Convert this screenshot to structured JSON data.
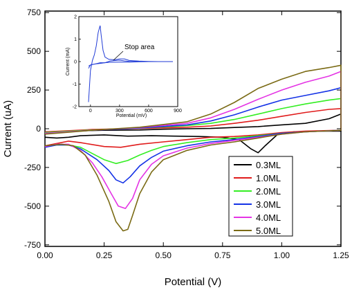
{
  "chart_data": [
    {
      "type": "line",
      "title": "",
      "xlabel": "Potential (V)",
      "ylabel": "Current (uA)",
      "xlim": [
        0.0,
        1.25
      ],
      "ylim": [
        -760,
        760
      ],
      "x_ticks": [
        "0.00",
        "0.25",
        "0.50",
        "0.75",
        "1.00",
        "1.25"
      ],
      "y_ticks": [
        "750",
        "500",
        "250",
        "0",
        "-250",
        "-500",
        "-750"
      ],
      "x_tick_values": [
        0.0,
        0.25,
        0.5,
        0.75,
        1.0,
        1.25
      ],
      "y_tick_values": [
        750,
        500,
        250,
        0,
        -250,
        -500,
        -750
      ],
      "legend_position": "bottom-right",
      "grid": false,
      "series": [
        {
          "name": "0.3ML",
          "color": "#000000",
          "upper": [
            [
              0.0,
              -20
            ],
            [
              0.1,
              -15
            ],
            [
              0.25,
              -10
            ],
            [
              0.4,
              -8
            ],
            [
              0.5,
              -3
            ],
            [
              0.6,
              0
            ],
            [
              0.7,
              2
            ],
            [
              0.8,
              8
            ],
            [
              0.9,
              14
            ],
            [
              1.0,
              25
            ],
            [
              1.1,
              35
            ],
            [
              1.2,
              65
            ],
            [
              1.25,
              95
            ]
          ],
          "lower": [
            [
              1.25,
              -15
            ],
            [
              1.15,
              -15
            ],
            [
              1.05,
              -20
            ],
            [
              0.98,
              -40
            ],
            [
              0.93,
              -110
            ],
            [
              0.9,
              -155
            ],
            [
              0.87,
              -130
            ],
            [
              0.82,
              -70
            ],
            [
              0.75,
              -55
            ],
            [
              0.65,
              -50
            ],
            [
              0.55,
              -48
            ],
            [
              0.45,
              -45
            ],
            [
              0.35,
              -48
            ],
            [
              0.25,
              -40
            ],
            [
              0.15,
              -45
            ],
            [
              0.1,
              -55
            ],
            [
              0.05,
              -60
            ],
            [
              0.0,
              -55
            ]
          ]
        },
        {
          "name": "1.0ML",
          "color": "#e01b1b",
          "upper": [
            [
              0.0,
              -20
            ],
            [
              0.2,
              -5
            ],
            [
              0.4,
              2
            ],
            [
              0.6,
              10
            ],
            [
              0.7,
              18
            ],
            [
              0.8,
              35
            ],
            [
              0.9,
              55
            ],
            [
              1.0,
              80
            ],
            [
              1.1,
              105
            ],
            [
              1.2,
              125
            ],
            [
              1.25,
              130
            ]
          ],
          "lower": [
            [
              1.25,
              -10
            ],
            [
              1.1,
              -15
            ],
            [
              1.0,
              -25
            ],
            [
              0.9,
              -40
            ],
            [
              0.8,
              -50
            ],
            [
              0.7,
              -55
            ],
            [
              0.6,
              -70
            ],
            [
              0.5,
              -85
            ],
            [
              0.4,
              -100
            ],
            [
              0.32,
              -120
            ],
            [
              0.25,
              -115
            ],
            [
              0.15,
              -90
            ],
            [
              0.1,
              -80
            ],
            [
              0.05,
              -95
            ],
            [
              0.0,
              -110
            ]
          ]
        },
        {
          "name": "2.0ML",
          "color": "#33ee22",
          "upper": [
            [
              0.0,
              -25
            ],
            [
              0.2,
              -8
            ],
            [
              0.4,
              5
            ],
            [
              0.6,
              20
            ],
            [
              0.7,
              35
            ],
            [
              0.8,
              60
            ],
            [
              0.9,
              95
            ],
            [
              1.0,
              130
            ],
            [
              1.1,
              160
            ],
            [
              1.2,
              185
            ],
            [
              1.25,
              195
            ]
          ],
          "lower": [
            [
              1.25,
              -10
            ],
            [
              1.1,
              -20
            ],
            [
              1.0,
              -30
            ],
            [
              0.9,
              -45
            ],
            [
              0.8,
              -60
            ],
            [
              0.7,
              -70
            ],
            [
              0.6,
              -90
            ],
            [
              0.5,
              -115
            ],
            [
              0.45,
              -140
            ],
            [
              0.4,
              -170
            ],
            [
              0.35,
              -205
            ],
            [
              0.3,
              -225
            ],
            [
              0.25,
              -200
            ],
            [
              0.2,
              -160
            ],
            [
              0.15,
              -120
            ],
            [
              0.1,
              -105
            ],
            [
              0.05,
              -105
            ],
            [
              0.0,
              -115
            ]
          ]
        },
        {
          "name": "3.0ML",
          "color": "#1432e6",
          "upper": [
            [
              0.0,
              -30
            ],
            [
              0.2,
              -10
            ],
            [
              0.4,
              5
            ],
            [
              0.6,
              25
            ],
            [
              0.7,
              50
            ],
            [
              0.8,
              90
            ],
            [
              0.9,
              140
            ],
            [
              1.0,
              185
            ],
            [
              1.1,
              215
            ],
            [
              1.2,
              245
            ],
            [
              1.25,
              265
            ]
          ],
          "lower": [
            [
              1.25,
              -10
            ],
            [
              1.1,
              -20
            ],
            [
              1.0,
              -30
            ],
            [
              0.9,
              -50
            ],
            [
              0.8,
              -70
            ],
            [
              0.7,
              -85
            ],
            [
              0.6,
              -110
            ],
            [
              0.5,
              -145
            ],
            [
              0.45,
              -185
            ],
            [
              0.4,
              -240
            ],
            [
              0.36,
              -310
            ],
            [
              0.33,
              -350
            ],
            [
              0.3,
              -330
            ],
            [
              0.27,
              -270
            ],
            [
              0.22,
              -200
            ],
            [
              0.15,
              -130
            ],
            [
              0.1,
              -105
            ],
            [
              0.05,
              -105
            ],
            [
              0.0,
              -120
            ]
          ]
        },
        {
          "name": "4.0ML",
          "color": "#e433e4",
          "upper": [
            [
              0.0,
              -30
            ],
            [
              0.2,
              -10
            ],
            [
              0.4,
              8
            ],
            [
              0.6,
              35
            ],
            [
              0.7,
              70
            ],
            [
              0.8,
              125
            ],
            [
              0.9,
              190
            ],
            [
              1.0,
              250
            ],
            [
              1.1,
              300
            ],
            [
              1.2,
              340
            ],
            [
              1.25,
              370
            ]
          ],
          "lower": [
            [
              1.25,
              -10
            ],
            [
              1.1,
              -20
            ],
            [
              1.0,
              -35
            ],
            [
              0.9,
              -55
            ],
            [
              0.8,
              -75
            ],
            [
              0.7,
              -95
            ],
            [
              0.6,
              -125
            ],
            [
              0.5,
              -175
            ],
            [
              0.45,
              -230
            ],
            [
              0.4,
              -330
            ],
            [
              0.37,
              -450
            ],
            [
              0.34,
              -515
            ],
            [
              0.31,
              -500
            ],
            [
              0.28,
              -420
            ],
            [
              0.24,
              -310
            ],
            [
              0.2,
              -220
            ],
            [
              0.15,
              -140
            ],
            [
              0.1,
              -100
            ],
            [
              0.05,
              -100
            ],
            [
              0.0,
              -115
            ]
          ]
        },
        {
          "name": "5.0ML",
          "color": "#7a6a14",
          "upper": [
            [
              0.0,
              -35
            ],
            [
              0.2,
              -10
            ],
            [
              0.4,
              10
            ],
            [
              0.6,
              45
            ],
            [
              0.7,
              95
            ],
            [
              0.8,
              170
            ],
            [
              0.9,
              260
            ],
            [
              1.0,
              320
            ],
            [
              1.1,
              370
            ],
            [
              1.2,
              395
            ],
            [
              1.25,
              410
            ]
          ],
          "lower": [
            [
              1.25,
              -10
            ],
            [
              1.1,
              -20
            ],
            [
              1.0,
              -35
            ],
            [
              0.9,
              -60
            ],
            [
              0.8,
              -85
            ],
            [
              0.7,
              -105
            ],
            [
              0.6,
              -140
            ],
            [
              0.5,
              -200
            ],
            [
              0.45,
              -280
            ],
            [
              0.4,
              -420
            ],
            [
              0.37,
              -560
            ],
            [
              0.35,
              -650
            ],
            [
              0.33,
              -660
            ],
            [
              0.3,
              -600
            ],
            [
              0.27,
              -470
            ],
            [
              0.22,
              -300
            ],
            [
              0.17,
              -170
            ],
            [
              0.12,
              -110
            ],
            [
              0.07,
              -100
            ],
            [
              0.0,
              -110
            ]
          ]
        }
      ]
    },
    {
      "type": "line",
      "title": "",
      "xlabel": "Potential (mV)",
      "ylabel": "Current (mA)",
      "xlim": [
        -120,
        900
      ],
      "ylim": [
        -2.0,
        2.0
      ],
      "x_ticks": [
        "0",
        "300",
        "600",
        "900"
      ],
      "y_ticks": [
        "2",
        "1",
        "0",
        "-1",
        "-2"
      ],
      "x_tick_values": [
        0,
        300,
        600,
        900
      ],
      "y_tick_values": [
        2,
        1,
        0,
        -1,
        -2
      ],
      "annotation": "Stop area",
      "series": [
        {
          "color": "#1f3ad6",
          "points": [
            [
              -20,
              -1.8
            ],
            [
              0,
              -0.4
            ],
            [
              20,
              0.05
            ],
            [
              40,
              0.3
            ],
            [
              60,
              0.7
            ],
            [
              80,
              1.3
            ],
            [
              100,
              1.6
            ],
            [
              110,
              1.2
            ],
            [
              130,
              0.5
            ],
            [
              150,
              0.2
            ],
            [
              190,
              0.1
            ],
            [
              250,
              0.08
            ],
            [
              300,
              0.12
            ],
            [
              350,
              0.12
            ],
            [
              400,
              0.05
            ],
            [
              500,
              0.02
            ],
            [
              600,
              0.01
            ],
            [
              700,
              0.0
            ],
            [
              800,
              0.0
            ],
            [
              850,
              0.0
            ]
          ]
        },
        {
          "color": "#1f3ad6",
          "points": [
            [
              -20,
              -0.3
            ],
            [
              0,
              -0.15
            ],
            [
              50,
              -0.1
            ],
            [
              100,
              -0.05
            ],
            [
              150,
              -0.05
            ],
            [
              200,
              0.02
            ],
            [
              260,
              0.05
            ],
            [
              300,
              0.06
            ],
            [
              350,
              0.03
            ],
            [
              400,
              0.01
            ],
            [
              500,
              0.0
            ],
            [
              650,
              0.0
            ],
            [
              850,
              0.0
            ]
          ]
        },
        {
          "color": "#1f3ad6",
          "points": [
            [
              850,
              0.0
            ],
            [
              700,
              0.0
            ],
            [
              600,
              0.0
            ],
            [
              500,
              -0.01
            ],
            [
              400,
              -0.02
            ],
            [
              300,
              -0.02
            ],
            [
              200,
              -0.03
            ],
            [
              150,
              -0.05
            ],
            [
              100,
              -0.08
            ],
            [
              60,
              -0.1
            ],
            [
              30,
              -0.12
            ],
            [
              0,
              -0.15
            ],
            [
              -20,
              -0.2
            ]
          ]
        }
      ]
    }
  ]
}
